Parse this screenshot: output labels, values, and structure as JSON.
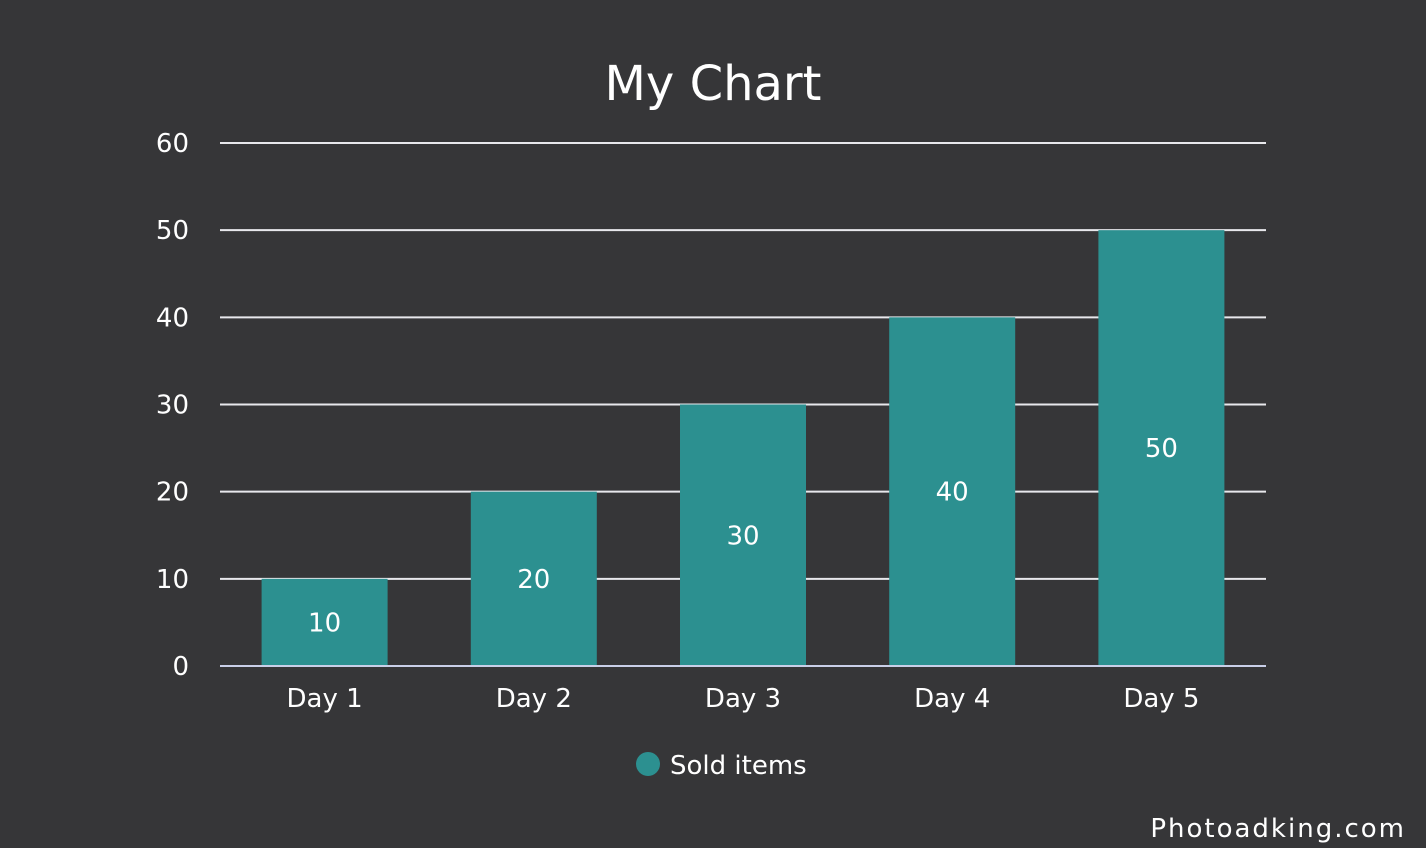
{
  "chart_data": {
    "type": "bar",
    "title": "My Chart",
    "categories": [
      "Day 1",
      "Day 2",
      "Day 3",
      "Day 4",
      "Day 5"
    ],
    "series": [
      {
        "name": "Sold items",
        "values": [
          10,
          20,
          30,
          40,
          50
        ],
        "color": "#2c9090"
      }
    ],
    "ylim": [
      0,
      60
    ],
    "yticks": [
      0,
      10,
      20,
      30,
      40,
      50,
      60
    ],
    "grid": true,
    "legend_position": "bottom-center",
    "data_labels": true,
    "colors": {
      "background": "#363638",
      "text": "#ffffff",
      "grid": "#e8e8ec"
    }
  },
  "watermark": "Photoadking.com"
}
